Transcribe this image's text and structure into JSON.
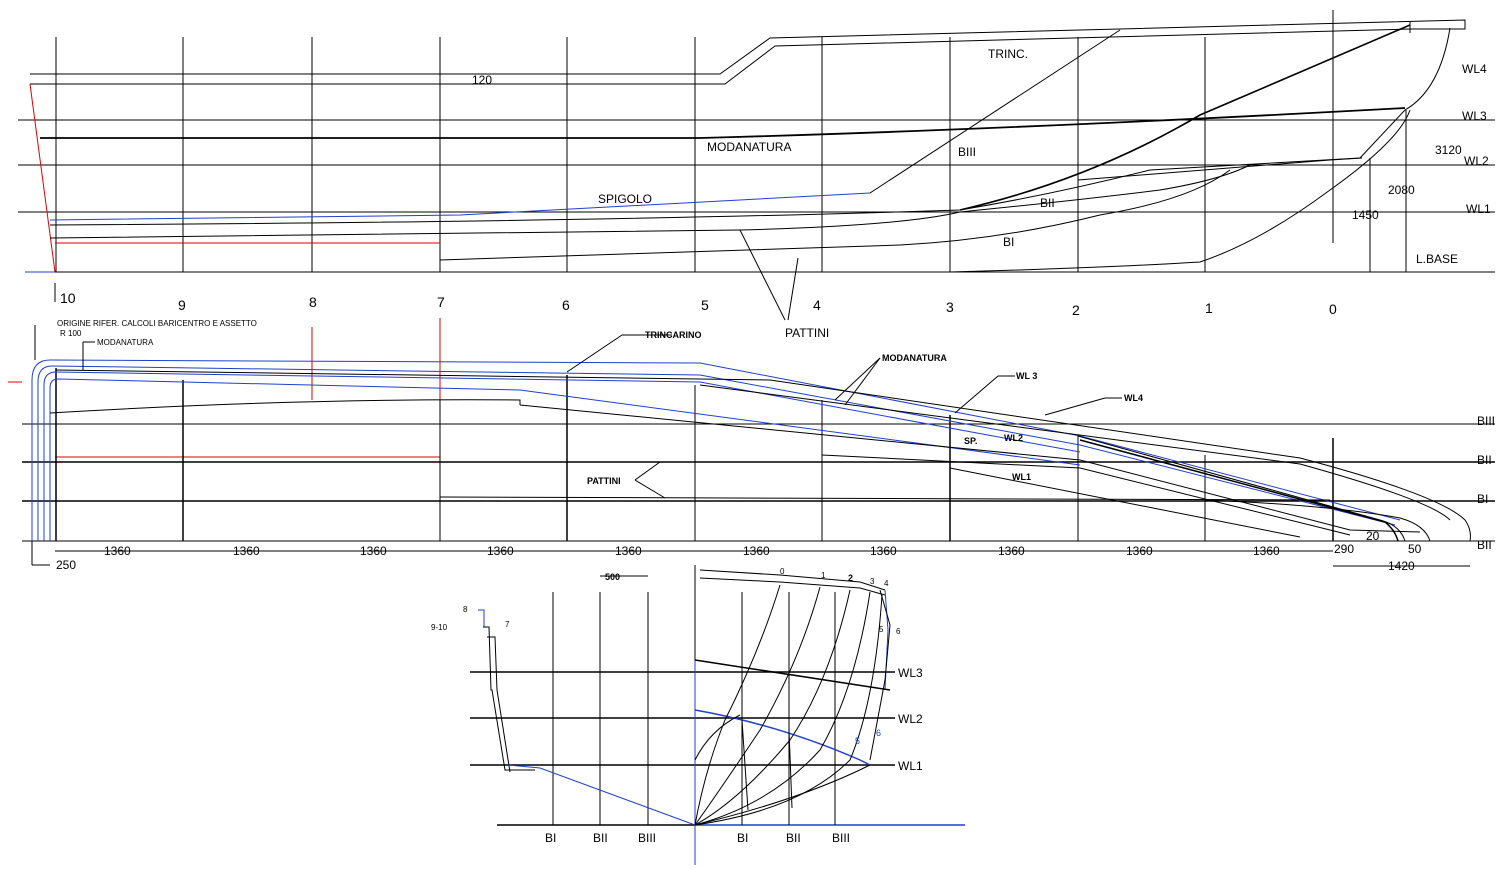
{
  "colors": {
    "line": "#000000",
    "hull_blue": "#1f3fd0",
    "reference_red": "#e00000"
  },
  "profile": {
    "stations": [
      "10",
      "9",
      "8",
      "7",
      "6",
      "5",
      "4",
      "3",
      "2",
      "1",
      "0"
    ],
    "waterlines": [
      "WL4",
      "WL3",
      "WL2",
      "WL1"
    ],
    "base_label": "L.BASE",
    "buttocks": [
      "BIII",
      "BII",
      "BI"
    ],
    "labels": {
      "trinc": "TRINC.",
      "modanatura": "MODANATURA",
      "spigolo": "SPIGOLO",
      "pattini": "PATTINI",
      "dim_120": "120"
    },
    "dimensions": [
      "3120",
      "2080",
      "1450"
    ]
  },
  "half_breadth": {
    "origin_note": "ORIGINE RIFER. CALCOLI BARICENTRO E ASSETTO",
    "radius_note": "R 100",
    "modanatura": "MODANATURA",
    "trincarino": "TRINCARINO",
    "pattini": "PATTINI",
    "wl3": "WL 3",
    "wl4": "WL4",
    "wl2": "WL2",
    "wl1": "WL1",
    "sp": "SP.",
    "buttocks_right": [
      "BIII",
      "BII",
      "BI",
      "BII"
    ],
    "spacings": [
      "1360",
      "1360",
      "1360",
      "1360",
      "1360",
      "1360",
      "1360",
      "1360",
      "1360",
      "1360"
    ],
    "dim_250": "250",
    "dim_290": "290",
    "dim_20": "20",
    "dim_50": "50",
    "dim_1420": "1420"
  },
  "body_plan": {
    "spacing": "500",
    "waterlines": [
      "WL3",
      "WL2",
      "WL1"
    ],
    "buttocks_aft": [
      "BI",
      "BII",
      "BIII"
    ],
    "buttocks_fwd": [
      "BI",
      "BII",
      "BIII"
    ],
    "station_top_labels": [
      "0",
      "1",
      "2",
      "3",
      "4"
    ],
    "station_side_labels": [
      "5",
      "6"
    ],
    "blue_labels": [
      "5",
      "6"
    ],
    "aft_labels": [
      "8",
      "9-10",
      "7"
    ]
  }
}
